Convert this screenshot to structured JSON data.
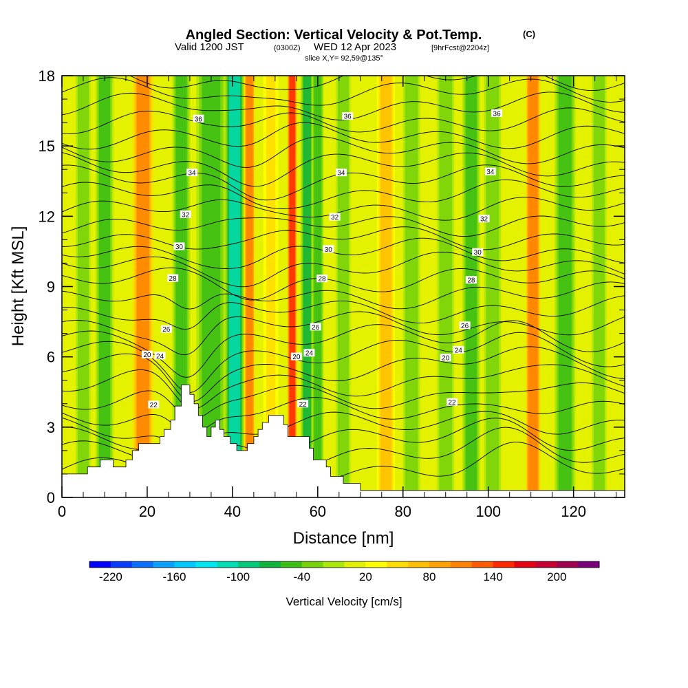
{
  "chart_data": {
    "type": "heatmap",
    "title": "Angled Section: Vertical Velocity & Pot.Temp.",
    "title_units": "(C)",
    "subtitle_main": "Valid 1200 JST",
    "subtitle_z": "(0300Z)",
    "subtitle_date": "WED 12 Apr 2023",
    "subtitle_fcst": "[9hrFcst@2204z]",
    "subtitle2": "slice X,Y= 92,59@135°",
    "xlabel": "Distance [nm]",
    "ylabel": "Height [Kft MSL]",
    "xlim": [
      0,
      132
    ],
    "ylim": [
      0,
      18
    ],
    "x_ticks": [
      "0",
      "20",
      "40",
      "60",
      "80",
      "100",
      "120"
    ],
    "y_ticks": [
      "0",
      "3",
      "6",
      "9",
      "12",
      "15",
      "18"
    ],
    "colorbar": {
      "label": "Vertical Velocity [cm/s]",
      "range": [
        -240,
        240
      ],
      "tick_labels": [
        "-220",
        "-160",
        "-100",
        "-40",
        "20",
        "80",
        "140",
        "200"
      ],
      "colors": [
        "#0000ff",
        "#0a3cff",
        "#0a6eff",
        "#0aa0ff",
        "#00c8ff",
        "#00e6f0",
        "#00dcb4",
        "#00c878",
        "#10b43c",
        "#3cbe14",
        "#78d20a",
        "#aae60a",
        "#e1f000",
        "#ffff00",
        "#ffdc00",
        "#ffbe00",
        "#ffa000",
        "#ff8200",
        "#ff5a00",
        "#ff2800",
        "#e60014",
        "#c80032",
        "#a00050",
        "#780078"
      ]
    },
    "velocity_columns": [
      {
        "x": 5,
        "w": 3,
        "v": -30
      },
      {
        "x": 10,
        "w": 3,
        "v": -45
      },
      {
        "x": 19,
        "w": 3.5,
        "v": 100
      },
      {
        "x": 28,
        "w": 3,
        "v": -50
      },
      {
        "x": 35,
        "w": 5,
        "v": -55
      },
      {
        "x": 40.5,
        "w": 3,
        "v": -120
      },
      {
        "x": 44,
        "w": 1.8,
        "v": 110
      },
      {
        "x": 49,
        "w": 2.5,
        "v": 45
      },
      {
        "x": 54,
        "w": 1.6,
        "v": 150
      },
      {
        "x": 57.5,
        "w": 2.2,
        "v": -70
      },
      {
        "x": 60,
        "w": 2,
        "v": -45
      },
      {
        "x": 66,
        "w": 3,
        "v": -40
      },
      {
        "x": 76,
        "w": 3,
        "v": 70
      },
      {
        "x": 82,
        "w": 3.5,
        "v": -35
      },
      {
        "x": 90,
        "w": 3.5,
        "v": -35
      },
      {
        "x": 96,
        "w": 3,
        "v": -45
      },
      {
        "x": 101,
        "w": 3.5,
        "v": -40
      },
      {
        "x": 110.5,
        "w": 2.5,
        "v": 110
      },
      {
        "x": 118,
        "w": 3.5,
        "v": -55
      },
      {
        "x": 126,
        "w": 3,
        "v": -40
      }
    ],
    "isentropes": [
      {
        "level": 20,
        "label": "20",
        "base": 6.3
      },
      {
        "level": 22,
        "label": "22",
        "base": 4.3
      },
      {
        "level": 24,
        "label": "24",
        "base": 6.2
      },
      {
        "level": 26,
        "label": "26",
        "base": 7.0
      },
      {
        "level": 28,
        "label": "28",
        "base": 9.0
      },
      {
        "level": 30,
        "label": "30",
        "base": 10.5
      },
      {
        "level": 32,
        "label": "32",
        "base": 12.2
      },
      {
        "level": 34,
        "label": "34",
        "base": 14.2
      },
      {
        "level": 36,
        "label": "36",
        "base": 16.4
      }
    ],
    "terrain": [
      [
        0,
        1
      ],
      [
        6,
        1
      ],
      [
        6,
        1.3
      ],
      [
        9,
        1.3
      ],
      [
        9,
        1.6
      ],
      [
        12,
        1.6
      ],
      [
        12,
        1.3
      ],
      [
        15,
        1.3
      ],
      [
        15,
        1.6
      ],
      [
        16.5,
        1.6
      ],
      [
        16.5,
        2
      ],
      [
        18,
        2
      ],
      [
        18,
        2.3
      ],
      [
        23,
        2.3
      ],
      [
        23,
        2.6
      ],
      [
        24,
        2.6
      ],
      [
        24,
        2.9
      ],
      [
        25.5,
        2.9
      ],
      [
        25.5,
        3.3
      ],
      [
        26.5,
        3.3
      ],
      [
        26.5,
        3.9
      ],
      [
        28,
        3.9
      ],
      [
        28,
        4.8
      ],
      [
        30,
        4.8
      ],
      [
        30,
        4.4
      ],
      [
        31,
        4.4
      ],
      [
        31,
        4
      ],
      [
        32,
        4
      ],
      [
        32,
        3.5
      ],
      [
        33,
        3.5
      ],
      [
        33,
        3
      ],
      [
        34,
        3
      ],
      [
        34,
        2.6
      ],
      [
        35,
        2.6
      ],
      [
        35,
        3
      ],
      [
        36,
        3
      ],
      [
        36,
        3.3
      ],
      [
        37,
        3.3
      ],
      [
        37,
        2.9
      ],
      [
        38,
        2.9
      ],
      [
        38,
        2.6
      ],
      [
        39.5,
        2.6
      ],
      [
        39.5,
        2.3
      ],
      [
        41,
        2.3
      ],
      [
        41,
        2
      ],
      [
        43.5,
        2
      ],
      [
        43.5,
        2.3
      ],
      [
        45,
        2.3
      ],
      [
        45,
        2.6
      ],
      [
        46,
        2.6
      ],
      [
        46,
        2.9
      ],
      [
        47,
        2.9
      ],
      [
        47,
        3.2
      ],
      [
        48.5,
        3.2
      ],
      [
        48.5,
        3.5
      ],
      [
        52,
        3.5
      ],
      [
        52,
        3.1
      ],
      [
        53,
        3.1
      ],
      [
        53,
        2.6
      ],
      [
        58,
        2.6
      ],
      [
        58,
        2.1
      ],
      [
        59,
        2.1
      ],
      [
        59,
        1.6
      ],
      [
        62,
        1.6
      ],
      [
        62,
        1.3
      ],
      [
        63,
        1.3
      ],
      [
        63,
        0.9
      ],
      [
        66,
        0.9
      ],
      [
        66,
        0.6
      ],
      [
        70,
        0.6
      ],
      [
        70,
        0.3
      ],
      [
        132,
        0.3
      ],
      [
        132,
        0
      ],
      [
        0,
        0
      ]
    ]
  }
}
